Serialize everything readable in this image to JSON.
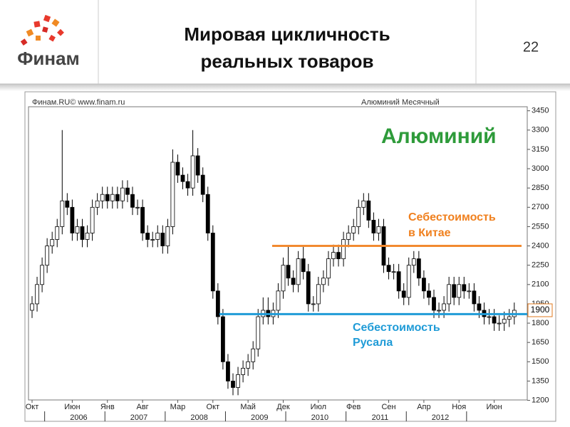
{
  "header": {
    "logo": "Финам",
    "title": [
      "Мировая цикличность",
      "реальных товаров"
    ],
    "page_number": "22"
  },
  "chart_data": {
    "type": "candlestick",
    "source": "Финам.RU© www.finam.ru",
    "subtitle": "Алюминий Месячный",
    "categories": [
      "Окт",
      null,
      null,
      null,
      null,
      null,
      null,
      null,
      "Июн",
      null,
      null,
      null,
      null,
      null,
      null,
      "Янв",
      null,
      null,
      null,
      null,
      null,
      null,
      "Авг",
      null,
      null,
      null,
      null,
      null,
      null,
      "Мар",
      null,
      null,
      null,
      null,
      null,
      null,
      "Окт",
      null,
      null,
      null,
      null,
      null,
      null,
      "Май",
      null,
      null,
      null,
      null,
      null,
      null,
      "Дек",
      null,
      null,
      null,
      null,
      null,
      null,
      "Июл",
      null,
      null,
      null,
      null,
      null,
      null,
      "Фев",
      null,
      null,
      null,
      null,
      null,
      null,
      "Сен",
      null,
      null,
      null,
      null,
      null,
      null,
      "Апр",
      null,
      null,
      null,
      null,
      null,
      null,
      "Ноя",
      null,
      null,
      null,
      null,
      null,
      null,
      "Июн",
      null,
      null,
      null,
      null
    ],
    "year_categories": [
      null,
      null,
      null,
      null,
      null,
      null,
      null,
      null,
      null,
      "2006",
      null,
      null,
      null,
      null,
      null,
      null,
      null,
      null,
      null,
      null,
      null,
      "2007",
      null,
      null,
      null,
      null,
      null,
      null,
      null,
      null,
      null,
      null,
      null,
      "2008",
      null,
      null,
      null,
      null,
      null,
      null,
      null,
      null,
      null,
      null,
      null,
      "2009",
      null,
      null,
      null,
      null,
      null,
      null,
      null,
      null,
      null,
      null,
      null,
      "2010",
      null,
      null,
      null,
      null,
      null,
      null,
      null,
      null,
      null,
      null,
      null,
      "2011",
      null,
      null,
      null,
      null,
      null,
      null,
      null,
      null,
      null,
      null,
      null,
      "2012",
      null,
      null,
      null,
      null,
      null,
      null,
      null,
      null,
      null,
      null,
      null,
      null,
      null,
      null,
      null
    ],
    "open": [
      1900,
      1950,
      2100,
      2250,
      2400,
      2450,
      2550,
      2750,
      2700,
      2500,
      2550,
      2450,
      2500,
      2700,
      2750,
      2800,
      2750,
      2800,
      2750,
      2850,
      2800,
      2700,
      2700,
      2500,
      2450,
      2450,
      2500,
      2400,
      2550,
      3050,
      2950,
      2900,
      2850,
      3100,
      2950,
      2800,
      2500,
      2050,
      1850,
      1500,
      1350,
      1300,
      1400,
      1450,
      1500,
      1600,
      1850,
      1900,
      1850,
      1900,
      2050,
      2250,
      2150,
      2100,
      2300,
      2200,
      1950,
      1950,
      2100,
      2150,
      2300,
      2350,
      2300,
      2450,
      2500,
      2550,
      2700,
      2750,
      2600,
      2500,
      2550,
      2250,
      2200,
      2200,
      2050,
      2000,
      2250,
      2300,
      2150,
      2050,
      2000,
      1900,
      1900,
      1950,
      2100,
      2000,
      2100,
      2050,
      2050,
      1950,
      1900,
      1850,
      1850,
      1800,
      1800,
      1830,
      1850
    ],
    "high": [
      2010,
      2160,
      2310,
      2460,
      2510,
      2610,
      3300,
      2810,
      2760,
      2610,
      2610,
      2560,
      2760,
      2810,
      2860,
      2860,
      2860,
      2860,
      2910,
      2910,
      2860,
      2760,
      2760,
      2560,
      2510,
      2560,
      2560,
      2610,
      3150,
      3110,
      3010,
      2960,
      3300,
      3160,
      3010,
      2860,
      2560,
      2110,
      1910,
      1560,
      1410,
      1460,
      1510,
      1560,
      1660,
      1910,
      2000,
      2000,
      1960,
      2110,
      2310,
      2400,
      2210,
      2360,
      2400,
      2260,
      2010,
      2160,
      2210,
      2360,
      2410,
      2410,
      2510,
      2560,
      2610,
      2760,
      2810,
      2810,
      2660,
      2610,
      2610,
      2310,
      2260,
      2260,
      2110,
      2310,
      2360,
      2360,
      2210,
      2110,
      2060,
      1960,
      2010,
      2160,
      2160,
      2160,
      2160,
      2110,
      2110,
      2010,
      1960,
      1910,
      1910,
      1860,
      1890,
      1910,
      1960
    ],
    "low": [
      1840,
      1890,
      2040,
      2190,
      2340,
      2390,
      2490,
      2640,
      2440,
      2440,
      2390,
      2390,
      2440,
      2640,
      2690,
      2690,
      2690,
      2690,
      2690,
      2740,
      2640,
      2640,
      2440,
      2390,
      2390,
      2390,
      2340,
      2340,
      2490,
      2890,
      2840,
      2790,
      2790,
      2890,
      2740,
      2440,
      1990,
      1790,
      1440,
      1290,
      1240,
      1240,
      1340,
      1390,
      1440,
      1540,
      1790,
      1790,
      1790,
      1840,
      1990,
      2090,
      2040,
      2040,
      2140,
      1890,
      1890,
      1890,
      2040,
      2090,
      2240,
      2240,
      2240,
      2390,
      2440,
      2490,
      2640,
      2540,
      2440,
      2440,
      2190,
      2140,
      2140,
      1990,
      1940,
      1940,
      2190,
      2090,
      1990,
      1940,
      1840,
      1840,
      1840,
      1890,
      1940,
      1940,
      1990,
      1990,
      1890,
      1840,
      1790,
      1790,
      1740,
      1740,
      1740,
      1770,
      1790
    ],
    "close": [
      1950,
      2100,
      2250,
      2400,
      2450,
      2550,
      2750,
      2700,
      2500,
      2550,
      2450,
      2500,
      2700,
      2750,
      2800,
      2750,
      2800,
      2750,
      2850,
      2800,
      2700,
      2700,
      2500,
      2450,
      2450,
      2500,
      2400,
      2550,
      3050,
      2950,
      2900,
      2850,
      3100,
      2950,
      2800,
      2500,
      2050,
      1850,
      1500,
      1350,
      1300,
      1400,
      1450,
      1500,
      1600,
      1850,
      1900,
      1850,
      1900,
      2050,
      2250,
      2150,
      2100,
      2300,
      2200,
      1950,
      1950,
      2100,
      2150,
      2300,
      2350,
      2300,
      2450,
      2500,
      2550,
      2700,
      2750,
      2600,
      2500,
      2550,
      2250,
      2200,
      2200,
      2050,
      2000,
      2250,
      2300,
      2150,
      2050,
      2000,
      1900,
      1900,
      1950,
      2100,
      2000,
      2100,
      2050,
      2050,
      1950,
      1900,
      1850,
      1850,
      1800,
      1800,
      1830,
      1850,
      1900
    ],
    "up_color": "#ffffff",
    "down_color": "#000000",
    "ylim": [
      1170,
      3520
    ],
    "yticks": [
      3450,
      3300,
      3150,
      3000,
      2850,
      2700,
      2550,
      2400,
      2250,
      2100,
      1950,
      1800,
      1650,
      1500,
      1350,
      1200
    ],
    "price_tag": 1900,
    "hlines": [
      {
        "value": 2400,
        "color": "#f28a30"
      },
      {
        "value": 1870,
        "color": "#1f9bd7"
      }
    ],
    "annotations": [
      {
        "text": [
          "Алюминий"
        ],
        "color": "#2e9b3a"
      },
      {
        "text": [
          "Себестоимость",
          "в Китае"
        ],
        "color": "#f0801e"
      },
      {
        "text": [
          "Себестоимость",
          "Русала"
        ],
        "color": "#1f9bd7"
      }
    ]
  }
}
